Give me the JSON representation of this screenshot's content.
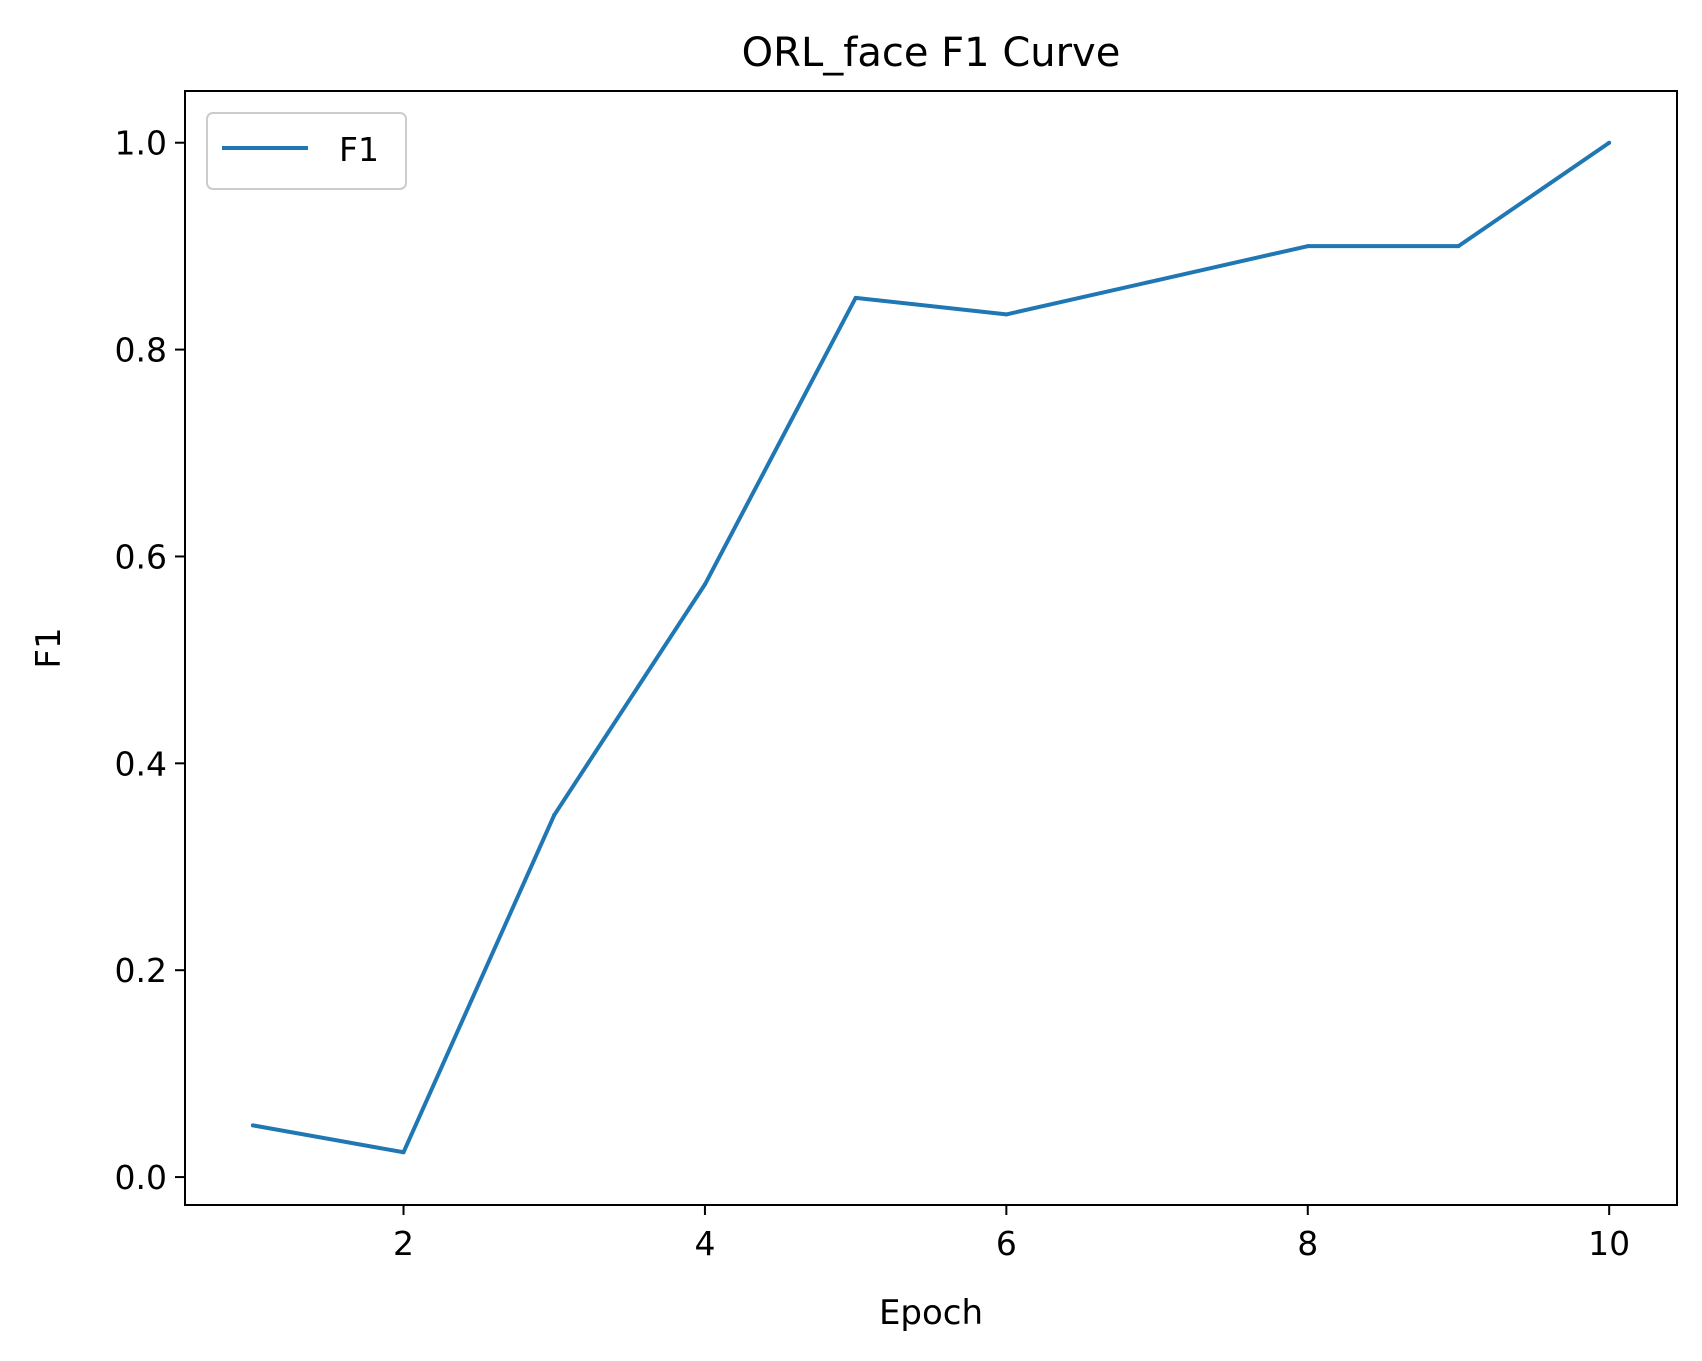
{
  "chart_data": {
    "type": "line",
    "title": "ORL_face F1 Curve",
    "xlabel": "Epoch",
    "ylabel": "F1",
    "xlim": [
      0.55,
      10.45
    ],
    "ylim": [
      -0.027,
      1.05
    ],
    "xticks": [
      2,
      4,
      6,
      8,
      10
    ],
    "yticks": [
      0.0,
      0.2,
      0.4,
      0.6,
      0.8,
      1.0
    ],
    "xtick_labels": [
      "2",
      "4",
      "6",
      "8",
      "10"
    ],
    "ytick_labels": [
      "0.0",
      "0.2",
      "0.4",
      "0.6",
      "0.8",
      "1.0"
    ],
    "grid": false,
    "legend": {
      "position": "top-left"
    },
    "series": [
      {
        "name": "F1",
        "color": "#1f77b4",
        "x": [
          1,
          2,
          3,
          4,
          5,
          6,
          7,
          8,
          9,
          10
        ],
        "y": [
          0.05,
          0.024,
          0.35,
          0.573,
          0.85,
          0.834,
          0.867,
          0.9,
          0.9,
          1.0
        ]
      }
    ]
  }
}
